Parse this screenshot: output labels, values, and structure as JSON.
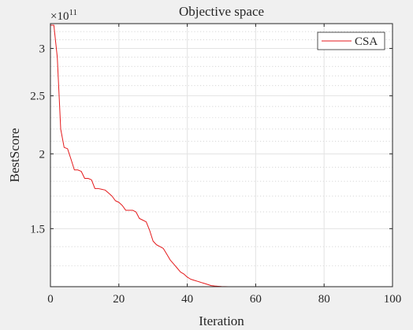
{
  "chart_data": {
    "type": "line",
    "title": "Objective space",
    "xlabel": "Iteration",
    "ylabel": "BestScore",
    "xlim": [
      0,
      100
    ],
    "ylim": [
      120000000000.0,
      330000000000.0
    ],
    "yscale": "log",
    "grid": true,
    "minor_grid_y": true,
    "exponent_label": {
      "base": "×10",
      "power": "11"
    },
    "xticks": [
      {
        "value": 0,
        "label": "0"
      },
      {
        "value": 20,
        "label": "20"
      },
      {
        "value": 40,
        "label": "40"
      },
      {
        "value": 60,
        "label": "60"
      },
      {
        "value": 80,
        "label": "80"
      },
      {
        "value": 100,
        "label": "100"
      }
    ],
    "yticks": [
      {
        "value": 150000000000.0,
        "label": "1.5"
      },
      {
        "value": 200000000000.0,
        "label": "2"
      },
      {
        "value": 250000000000.0,
        "label": "2.5"
      },
      {
        "value": 300000000000.0,
        "label": "3"
      }
    ],
    "yminor": [
      130000000000.0,
      140000000000.0,
      160000000000.0,
      170000000000.0,
      180000000000.0,
      190000000000.0,
      210000000000.0,
      220000000000.0,
      230000000000.0,
      240000000000.0,
      260000000000.0,
      270000000000.0,
      280000000000.0,
      290000000000.0,
      310000000000.0,
      320000000000.0
    ],
    "legend": {
      "position": "top-right"
    },
    "series": [
      {
        "name": "CSA",
        "color": "#e41a1c",
        "x": [
          0,
          1,
          2,
          3,
          4,
          5,
          6,
          7,
          8,
          9,
          10,
          11,
          12,
          13,
          14,
          15,
          16,
          17,
          18,
          19,
          20,
          21,
          22,
          23,
          24,
          25,
          26,
          27,
          28,
          29,
          30,
          31,
          32,
          33,
          34,
          35,
          36,
          37,
          38,
          39,
          40,
          41,
          42,
          43,
          44,
          45,
          46,
          47,
          48,
          49,
          50,
          52,
          54,
          56,
          58,
          60,
          65,
          70,
          75,
          80,
          85,
          90,
          95,
          100
        ],
        "values": [
          328000000000.0,
          328000000000.0,
          290000000000.0,
          220000000000.0,
          205000000000.0,
          204000000000.0,
          196000000000.0,
          188000000000.0,
          188000000000.0,
          187000000000.0,
          182000000000.0,
          182000000000.0,
          181000000000.0,
          175000000000.0,
          175000000000.0,
          174500000000.0,
          174000000000.0,
          172000000000.0,
          170000000000.0,
          167000000000.0,
          166000000000.0,
          164000000000.0,
          161000000000.0,
          161000000000.0,
          161000000000.0,
          160000000000.0,
          156000000000.0,
          155000000000.0,
          154000000000.0,
          149000000000.0,
          143000000000.0,
          141000000000.0,
          140000000000.0,
          139000000000.0,
          136000000000.0,
          133000000000.0,
          131000000000.0,
          129000000000.0,
          127000000000.0,
          126000000000.0,
          124500000000.0,
          123500000000.0,
          123000000000.0,
          122500000000.0,
          122000000000.0,
          121500000000.0,
          121000000000.0,
          120500000000.0,
          120300000000.0,
          120200000000.0,
          120100000000.0,
          120000000000.0,
          120000000000.0,
          120000000000.0,
          120000000000.0,
          120000000000.0,
          120000000000.0,
          120000000000.0,
          120000000000.0,
          120000000000.0,
          120000000000.0,
          120000000000.0,
          120000000000.0,
          120000000000.0
        ]
      }
    ]
  }
}
